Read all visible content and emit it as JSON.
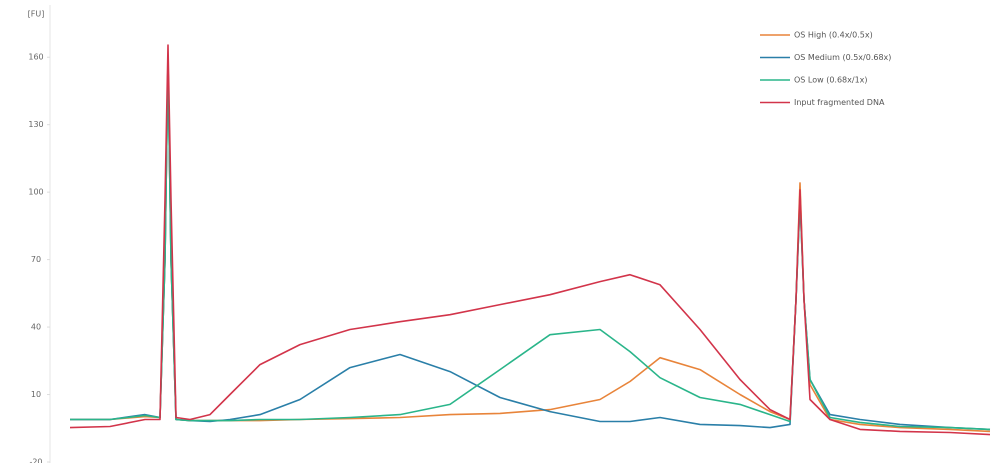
{
  "chart_data": {
    "type": "line",
    "y_label": "[FU]",
    "x": [
      0,
      40,
      75,
      90,
      95,
      98,
      101,
      106,
      120,
      140,
      160,
      190,
      230,
      280,
      330,
      380,
      430,
      480,
      530,
      560,
      590,
      630,
      670,
      700,
      720,
      726,
      730,
      734,
      740,
      760,
      790,
      830,
      880,
      920
    ],
    "xlim": [
      0,
      920
    ],
    "ylim": [
      -20,
      185
    ],
    "yticks": [
      -20,
      10,
      40,
      70,
      100,
      130,
      160
    ],
    "series": [
      {
        "name": "OS High (0.4x/0.5x)",
        "color": "#e8843a",
        "values": [
          -1.1,
          -1.1,
          0.2,
          -0.2,
          70,
          158.8,
          70,
          -1.1,
          -1.6,
          -1.6,
          -1.6,
          -1.6,
          -1.1,
          -0.7,
          -0.2,
          1.1,
          1.6,
          3.3,
          7.8,
          15.8,
          26.4,
          21.1,
          10,
          2.4,
          -1.1,
          52.2,
          104.1,
          52.2,
          14.4,
          -1.1,
          -3.3,
          -4.7,
          -5.5,
          -6.4
        ]
      },
      {
        "name": "OS Medium (0.5x/0.68x)",
        "color": "#2a7fa8",
        "values": [
          -1.1,
          -1.1,
          1.1,
          -0.2,
          70,
          158.8,
          70,
          -1.1,
          -1.6,
          -2,
          -1.1,
          1.1,
          7.8,
          22,
          27.8,
          20.2,
          8.7,
          2.4,
          -2,
          -2,
          -0.2,
          -3.3,
          -3.8,
          -4.7,
          -3.3,
          52.2,
          96.6,
          52.2,
          16.7,
          1.1,
          -1.1,
          -3.3,
          -4.7,
          -5.5
        ]
      },
      {
        "name": "OS Low (0.68x/1x)",
        "color": "#2ab58a",
        "values": [
          -1.1,
          -1.1,
          0.7,
          -0.2,
          70,
          158.8,
          70,
          -1.1,
          -1.6,
          -1.6,
          -1.6,
          -1.1,
          -1.1,
          -0.2,
          1.1,
          5.6,
          21.1,
          36.6,
          38.9,
          29.1,
          17.5,
          8.7,
          5.6,
          1.1,
          -2,
          52.2,
          96.6,
          52.2,
          16.7,
          -0.2,
          -2.4,
          -4.2,
          -4.7,
          -5.5
        ]
      },
      {
        "name": "Input fragmented DNA",
        "color": "#d2344a",
        "values": [
          -4.7,
          -4.2,
          -1.1,
          -1.1,
          96.6,
          165.4,
          96.6,
          -0.2,
          -1.1,
          1.1,
          10,
          23.3,
          32.2,
          38.9,
          42.4,
          45.5,
          50,
          54.4,
          60.2,
          63.3,
          58.8,
          38.9,
          16.7,
          3.3,
          -1.1,
          52.2,
          101,
          52.2,
          7.8,
          -1.1,
          -5.5,
          -6.4,
          -6.9,
          -7.8
        ]
      }
    ],
    "legend": "top-right"
  }
}
